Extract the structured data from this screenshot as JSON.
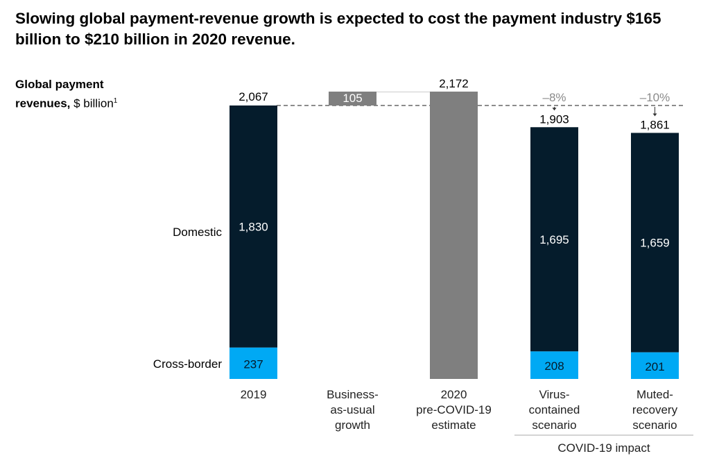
{
  "title": "Slowing global payment-revenue growth is expected to cost the payment industry $165 billion to $210 billion in 2020 revenue.",
  "chart_data": {
    "type": "bar",
    "subtype": "waterfall-stacked",
    "ylabel_bold": "Global payment revenues,",
    "ylabel_unit": "$ billion",
    "ylabel_footnote": "1",
    "categories": [
      "2019",
      "Business-\nas-usual\ngrowth",
      "2020\npre-COVID-19\nestimate",
      "Virus-\ncontained\nscenario",
      "Muted-\nrecovery\nscenario"
    ],
    "series": [
      {
        "name": "Cross-border",
        "values": [
          237,
          null,
          null,
          208,
          201
        ]
      },
      {
        "name": "Domestic",
        "values": [
          1830,
          null,
          null,
          1695,
          1659
        ]
      }
    ],
    "bau_growth": {
      "from": 2067,
      "value": 105
    },
    "pre_covid_estimate": 2172,
    "totals": [
      "2,067",
      "105",
      "2,172",
      "1,903",
      "1,861"
    ],
    "segment_labels": {
      "domestic": [
        "1,830",
        "",
        "",
        "1,695",
        "1,659"
      ],
      "cross_border": [
        "237",
        "",
        "",
        "208",
        "201"
      ]
    },
    "change_labels": [
      "",
      "",
      "",
      "–8%",
      "–10%"
    ],
    "group_label": "COVID-19 impact",
    "reference_line": 2067,
    "ylim": [
      0,
      2172
    ],
    "colors": {
      "domestic": "#051c2c",
      "cross_border": "#00a9f4",
      "estimate": "#7f7f7f",
      "change_label": "#8a8a8a"
    }
  }
}
